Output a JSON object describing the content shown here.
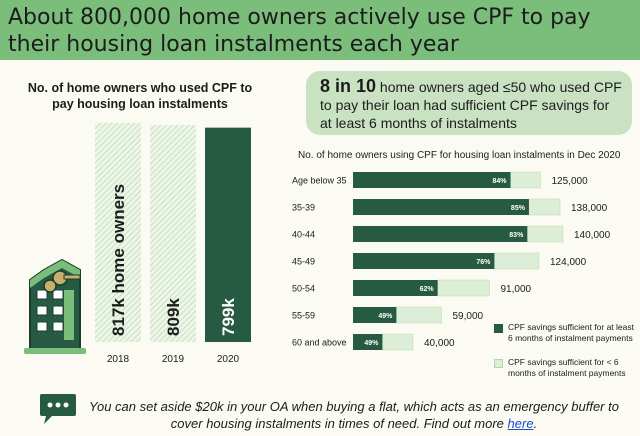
{
  "title": "About 800,000 home owners actively use CPF to pay their housing loan instalments each year",
  "colors": {
    "title_bg": "#7bbd7a",
    "dark_green": "#275a43",
    "light_green": "#ddeed6",
    "hatch_green": "#cfe6c6",
    "callout_bg": "#c9e2c2",
    "link": "#1a4ad6"
  },
  "callout": {
    "highlight": "8 in 10",
    "text": " home owners aged ≤50 who used CPF to pay their loan had sufficient CPF savings for at least 6 months of instalments"
  },
  "footer": {
    "text": "You can set aside $20k in your OA when buying a flat, which acts as an emergency buffer to cover housing instalments in times of need. Find out more ",
    "link": "here",
    "end": ".",
    "icon": "chat-bubble-icon"
  },
  "illustration": "building-with-key-icon",
  "legend": [
    {
      "label": "CPF savings sufficient for at least 6 months of instalment payments",
      "color": "#275a43"
    },
    {
      "label": "CPF savings sufficient for < 6 months of instalment payments",
      "color": "#ddeed6"
    }
  ],
  "chart_data": [
    {
      "type": "bar",
      "title": "No. of home owners who used CPF to pay housing loan instalments",
      "categories": [
        "2018",
        "2019",
        "2020"
      ],
      "values": [
        817,
        809,
        799
      ],
      "bar_labels": [
        "817k home owners",
        "809k",
        "799k"
      ],
      "unit": "thousand home owners",
      "styles": [
        "hatched",
        "hatched",
        "solid"
      ]
    },
    {
      "type": "bar",
      "orientation": "horizontal",
      "stacked": true,
      "title": "No. of home owners using CPF for housing loan instalments in Dec 2020",
      "categories": [
        "Age below 35",
        "35-39",
        "40-44",
        "45-49",
        "50-54",
        "55-59",
        "60 and above"
      ],
      "totals": [
        125000,
        138000,
        140000,
        124000,
        91000,
        59000,
        40000
      ],
      "total_labels": [
        "125,000",
        "138,000",
        "140,000",
        "124,000",
        "91,000",
        "59,000",
        "40,000"
      ],
      "series": [
        {
          "name": "CPF savings sufficient for at least 6 months of instalment payments",
          "percent": [
            84,
            85,
            83,
            76,
            62,
            49,
            49
          ]
        },
        {
          "name": "CPF savings sufficient for < 6 months of instalment payments",
          "percent": [
            16,
            15,
            17,
            24,
            38,
            51,
            51
          ]
        }
      ],
      "percent_labels": [
        "84%",
        "85%",
        "83%",
        "76%",
        "62%",
        "49%",
        "49%"
      ]
    }
  ]
}
